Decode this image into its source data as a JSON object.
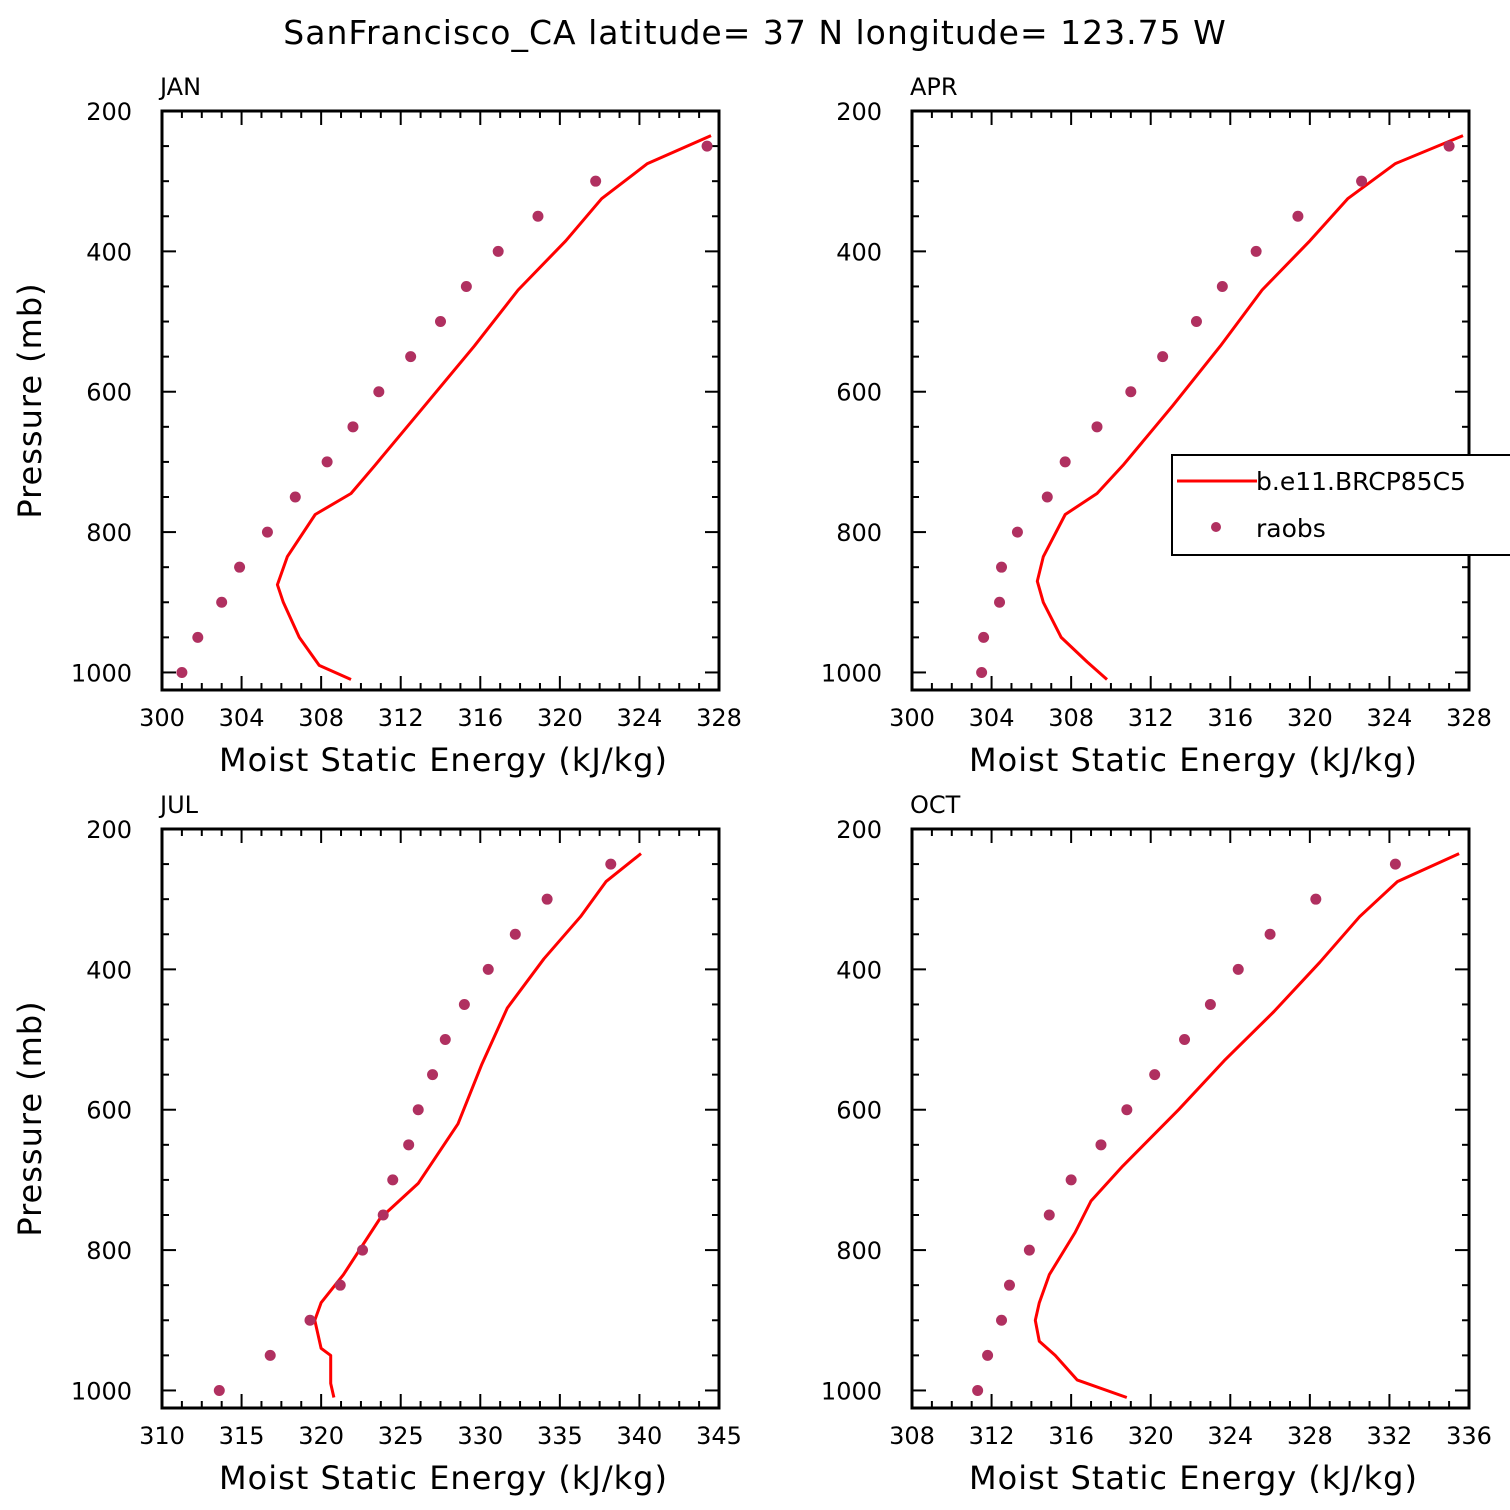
{
  "title": "SanFrancisco_CA  latitude= 37 N longitude= 123.75 W",
  "colors": {
    "model": "#ff0000",
    "obs": "#b03060",
    "axis": "#000000"
  },
  "legend": {
    "placement": "right of APR panel",
    "items": [
      "b.e11.BRCP85C5",
      "raobs"
    ]
  },
  "chart_data": [
    {
      "type": "line",
      "panel": "JAN",
      "xlabel": "Moist Static Energy (kJ/kg)",
      "ylabel": "Pressure (mb)",
      "xlim": [
        300,
        328
      ],
      "ylim": [
        1025,
        200
      ],
      "xticks": [
        300,
        304,
        308,
        312,
        316,
        320,
        324,
        328
      ],
      "yticks": [
        200,
        400,
        600,
        800,
        1000
      ],
      "model": {
        "name": "b.e11.BRCP85C5",
        "x": [
          327.6,
          324.4,
          322.1,
          320.3,
          317.9,
          315.7,
          313.2,
          310.7,
          309.5,
          307.7,
          306.3,
          305.8,
          306.1,
          306.9,
          307.9,
          309.5
        ],
        "y": [
          235,
          275,
          325,
          385,
          455,
          535,
          620,
          705,
          745,
          775,
          835,
          875,
          900,
          950,
          990,
          1010
        ]
      },
      "obs": {
        "name": "raobs",
        "x": [
          327.4,
          321.8,
          318.9,
          316.9,
          315.3,
          314.0,
          312.5,
          310.9,
          309.6,
          308.3,
          306.7,
          305.3,
          303.9,
          303.0,
          301.8,
          301.0
        ],
        "y": [
          250,
          300,
          350,
          400,
          450,
          500,
          550,
          600,
          650,
          700,
          750,
          800,
          850,
          900,
          950,
          1000
        ]
      }
    },
    {
      "type": "line",
      "panel": "APR",
      "xlabel": "Moist Static Energy (kJ/kg)",
      "ylabel": "",
      "xlim": [
        300,
        328
      ],
      "ylim": [
        1025,
        200
      ],
      "xticks": [
        300,
        304,
        308,
        312,
        316,
        320,
        324,
        328
      ],
      "yticks": [
        200,
        400,
        600,
        800,
        1000
      ],
      "model": {
        "name": "b.e11.BRCP85C5",
        "x": [
          327.7,
          324.3,
          321.9,
          320.0,
          317.6,
          315.5,
          313.1,
          310.6,
          309.3,
          307.7,
          306.6,
          306.3,
          306.6,
          307.5,
          308.8,
          309.8
        ],
        "y": [
          235,
          275,
          325,
          385,
          455,
          535,
          620,
          705,
          745,
          775,
          835,
          870,
          900,
          950,
          985,
          1010
        ]
      },
      "obs": {
        "name": "raobs",
        "x": [
          327.0,
          322.6,
          319.4,
          317.3,
          315.6,
          314.3,
          312.6,
          311.0,
          309.3,
          307.7,
          306.8,
          305.3,
          304.5,
          304.4,
          303.6,
          303.5
        ],
        "y": [
          250,
          300,
          350,
          400,
          450,
          500,
          550,
          600,
          650,
          700,
          750,
          800,
          850,
          900,
          950,
          1000
        ]
      }
    },
    {
      "type": "line",
      "panel": "JUL",
      "xlabel": "Moist Static Energy (kJ/kg)",
      "ylabel": "Pressure (mb)",
      "xlim": [
        310,
        345
      ],
      "ylim": [
        1025,
        200
      ],
      "xticks": [
        310,
        315,
        320,
        325,
        330,
        335,
        340,
        345
      ],
      "yticks": [
        200,
        400,
        600,
        800,
        1000
      ],
      "model": {
        "name": "b.e11.BRCP85C5",
        "x": [
          340.1,
          337.9,
          336.3,
          334.0,
          331.7,
          330.1,
          328.6,
          326.1,
          323.7,
          321.4,
          320.0,
          319.6,
          320.0,
          320.6,
          320.6,
          320.8
        ],
        "y": [
          235,
          275,
          325,
          385,
          455,
          535,
          620,
          705,
          755,
          835,
          875,
          900,
          940,
          950,
          990,
          1010
        ]
      },
      "obs": {
        "name": "raobs",
        "x": [
          338.2,
          334.2,
          332.2,
          330.5,
          329.0,
          327.8,
          327.0,
          326.1,
          325.5,
          324.5,
          323.9,
          322.6,
          321.2,
          319.3,
          316.8,
          313.6
        ],
        "y": [
          250,
          300,
          350,
          400,
          450,
          500,
          550,
          600,
          650,
          700,
          750,
          800,
          850,
          900,
          950,
          1000
        ]
      }
    },
    {
      "type": "line",
      "panel": "OCT",
      "xlabel": "Moist Static Energy (kJ/kg)",
      "ylabel": "",
      "xlim": [
        308,
        336
      ],
      "ylim": [
        1025,
        200
      ],
      "xticks": [
        308,
        312,
        316,
        320,
        324,
        328,
        332,
        336
      ],
      "yticks": [
        200,
        400,
        600,
        800,
        1000
      ],
      "model": {
        "name": "b.e11.BRCP85C5",
        "x": [
          335.5,
          332.4,
          330.5,
          328.5,
          326.2,
          323.7,
          321.4,
          318.6,
          317.0,
          316.2,
          314.9,
          314.4,
          314.2,
          314.4,
          315.2,
          316.3,
          318.8
        ],
        "y": [
          235,
          275,
          325,
          390,
          460,
          530,
          600,
          680,
          730,
          775,
          835,
          875,
          900,
          930,
          950,
          985,
          1010
        ]
      },
      "obs": {
        "name": "raobs",
        "x": [
          332.3,
          328.3,
          326.0,
          324.4,
          323.0,
          321.7,
          320.2,
          318.8,
          317.5,
          316.0,
          314.9,
          313.9,
          312.9,
          312.5,
          311.8,
          311.3
        ],
        "y": [
          250,
          300,
          350,
          400,
          450,
          500,
          550,
          600,
          650,
          700,
          750,
          800,
          850,
          900,
          950,
          1000
        ]
      }
    }
  ]
}
